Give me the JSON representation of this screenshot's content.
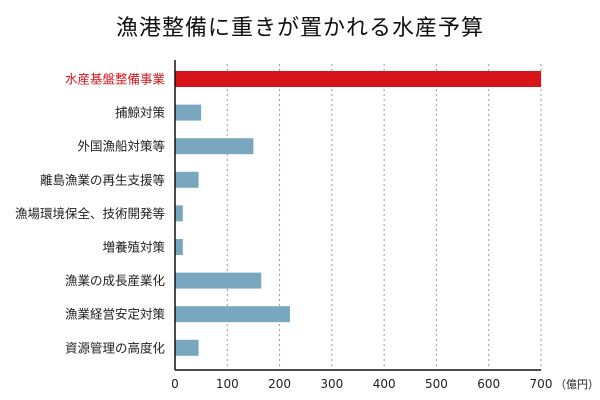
{
  "chart_data": {
    "type": "bar",
    "orientation": "horizontal",
    "title": "漁港整備に重きが置かれる水産予算",
    "categories": [
      "水産基盤整備事業",
      "捕鯨対策",
      "外国漁船対策等",
      "離島漁業の再生支援等",
      "漁場環境保全、技術開発等",
      "増養殖対策",
      "漁業の成長産業化",
      "漁業経営安定対策",
      "資源管理の高度化"
    ],
    "values": [
      700,
      50,
      150,
      45,
      15,
      15,
      165,
      220,
      45
    ],
    "highlight_index": 0,
    "xlim": [
      0,
      700
    ],
    "xticks": [
      0,
      100,
      200,
      300,
      400,
      500,
      600,
      700
    ],
    "x_unit": "（億円）",
    "grid": "vertical-dashed",
    "colors": {
      "highlight_bar": "#d7141a",
      "highlight_label": "#d7141a",
      "bar": "#7aa7c0",
      "label": "#222222"
    }
  }
}
